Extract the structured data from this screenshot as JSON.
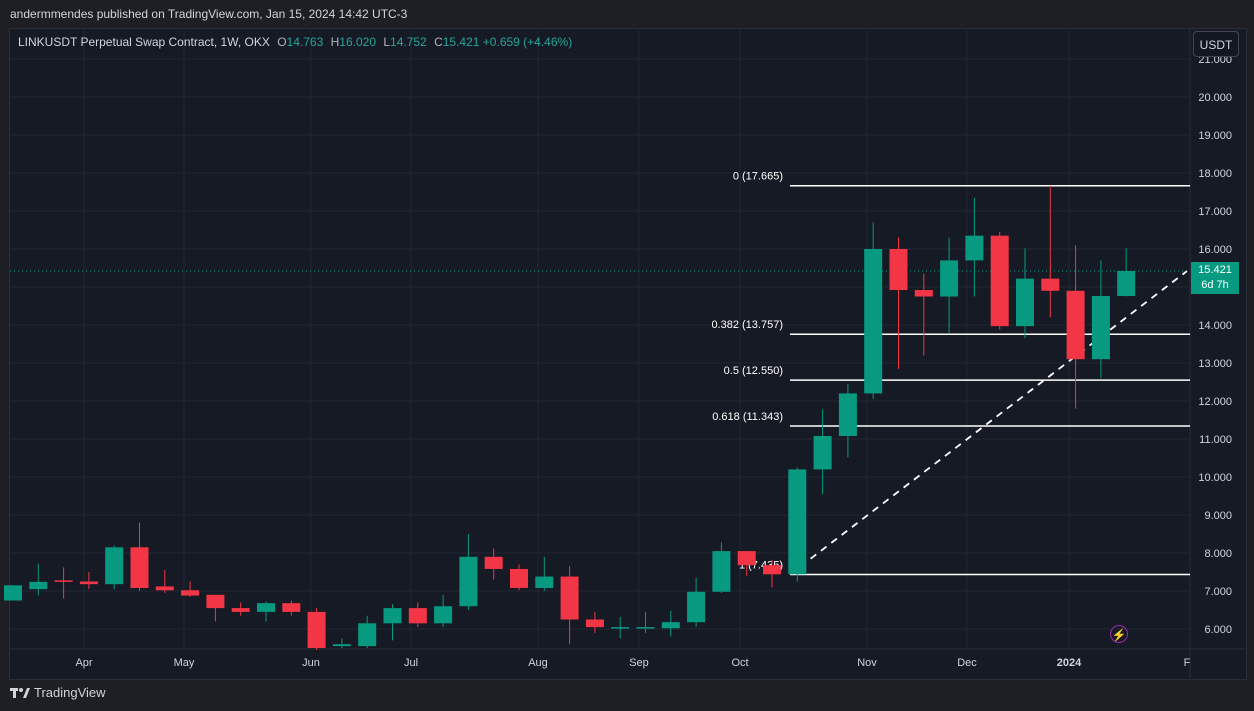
{
  "header": {
    "published": "andermmendes published on TradingView.com, Jan 15, 2024 14:42 UTC-3"
  },
  "legend": {
    "symbol": "LINKUSDT Perpetual Swap Contract, 1W, OKX",
    "o_label": "O",
    "o_value": "14.763",
    "h_label": "H",
    "h_value": "16.020",
    "l_label": "L",
    "l_value": "14.752",
    "c_label": "C",
    "c_value": "15.421",
    "change": "+0.659 (+4.46%)"
  },
  "currency_button": "USDT",
  "last_price": {
    "price": "15.421",
    "countdown": "6d 7h"
  },
  "footer": {
    "brand": "TradingView"
  },
  "colors": {
    "up": "#089981",
    "down": "#f23645",
    "background": "#161a25",
    "grid": "#2a2e39",
    "text": "#d1d4dc"
  },
  "icons": {
    "flash": "lightning-icon",
    "logo": "tradingview-logo-icon"
  },
  "chart_data": {
    "type": "candlestick",
    "ylim": [
      5.4,
      21.0
    ],
    "y_ticks": [
      "21.000",
      "20.000",
      "19.000",
      "18.000",
      "17.000",
      "16.000",
      "15.000",
      "14.000",
      "13.000",
      "12.000",
      "11.000",
      "10.000",
      "9.000",
      "8.000",
      "7.000",
      "6.000"
    ],
    "x_ticks": [
      "Apr",
      "May",
      "Jun",
      "Jul",
      "Aug",
      "Sep",
      "Oct",
      "Nov",
      "Dec",
      "2024",
      "F"
    ],
    "candles": [
      {
        "o": 6.75,
        "h": 7.15,
        "l": 6.75,
        "c": 7.15
      },
      {
        "o": 7.05,
        "h": 7.72,
        "l": 6.88,
        "c": 7.24
      },
      {
        "o": 7.28,
        "h": 7.62,
        "l": 6.8,
        "c": 7.24
      },
      {
        "o": 7.25,
        "h": 7.5,
        "l": 7.05,
        "c": 7.18
      },
      {
        "o": 7.18,
        "h": 8.2,
        "l": 7.05,
        "c": 8.15
      },
      {
        "o": 8.15,
        "h": 8.8,
        "l": 7.0,
        "c": 7.08
      },
      {
        "o": 7.12,
        "h": 7.55,
        "l": 6.95,
        "c": 7.02
      },
      {
        "o": 7.02,
        "h": 7.25,
        "l": 6.85,
        "c": 6.88
      },
      {
        "o": 6.9,
        "h": 6.9,
        "l": 6.2,
        "c": 6.55
      },
      {
        "o": 6.55,
        "h": 6.7,
        "l": 6.35,
        "c": 6.45
      },
      {
        "o": 6.45,
        "h": 6.72,
        "l": 6.2,
        "c": 6.68
      },
      {
        "o": 6.68,
        "h": 6.75,
        "l": 6.35,
        "c": 6.45
      },
      {
        "o": 6.45,
        "h": 6.55,
        "l": 5.45,
        "c": 5.5
      },
      {
        "o": 5.55,
        "h": 5.75,
        "l": 5.5,
        "c": 5.6
      },
      {
        "o": 5.55,
        "h": 6.35,
        "l": 5.5,
        "c": 6.15
      },
      {
        "o": 6.15,
        "h": 6.65,
        "l": 5.7,
        "c": 6.55
      },
      {
        "o": 6.55,
        "h": 6.7,
        "l": 6.05,
        "c": 6.15
      },
      {
        "o": 6.15,
        "h": 6.9,
        "l": 6.05,
        "c": 6.6
      },
      {
        "o": 6.6,
        "h": 8.5,
        "l": 6.5,
        "c": 7.9
      },
      {
        "o": 7.9,
        "h": 8.12,
        "l": 7.3,
        "c": 7.58
      },
      {
        "o": 7.58,
        "h": 7.7,
        "l": 7.02,
        "c": 7.08
      },
      {
        "o": 7.08,
        "h": 7.9,
        "l": 7.0,
        "c": 7.38
      },
      {
        "o": 7.38,
        "h": 7.65,
        "l": 5.6,
        "c": 6.25
      },
      {
        "o": 6.25,
        "h": 6.45,
        "l": 5.9,
        "c": 6.05
      },
      {
        "o": 6.05,
        "h": 6.32,
        "l": 5.75,
        "c": 6.05
      },
      {
        "o": 6.05,
        "h": 6.45,
        "l": 5.9,
        "c": 6.05
      },
      {
        "o": 6.02,
        "h": 6.48,
        "l": 5.8,
        "c": 6.18
      },
      {
        "o": 6.18,
        "h": 7.35,
        "l": 6.05,
        "c": 6.98
      },
      {
        "o": 6.98,
        "h": 8.28,
        "l": 6.95,
        "c": 8.05
      },
      {
        "o": 8.05,
        "h": 8.05,
        "l": 7.4,
        "c": 7.68
      },
      {
        "o": 7.68,
        "h": 7.82,
        "l": 7.1,
        "c": 7.44
      },
      {
        "o": 7.44,
        "h": 10.25,
        "l": 7.25,
        "c": 10.2
      },
      {
        "o": 10.2,
        "h": 11.78,
        "l": 9.55,
        "c": 11.08
      },
      {
        "o": 11.08,
        "h": 12.45,
        "l": 10.52,
        "c": 12.2
      },
      {
        "o": 12.2,
        "h": 16.7,
        "l": 12.05,
        "c": 16.0
      },
      {
        "o": 16.0,
        "h": 16.3,
        "l": 12.85,
        "c": 14.92
      },
      {
        "o": 14.92,
        "h": 15.35,
        "l": 13.2,
        "c": 14.75
      },
      {
        "o": 14.75,
        "h": 16.3,
        "l": 13.8,
        "c": 15.7
      },
      {
        "o": 15.7,
        "h": 17.35,
        "l": 14.75,
        "c": 16.35
      },
      {
        "o": 16.35,
        "h": 16.45,
        "l": 13.88,
        "c": 13.97
      },
      {
        "o": 13.97,
        "h": 16.02,
        "l": 13.65,
        "c": 15.22
      },
      {
        "o": 15.22,
        "h": 17.665,
        "l": 14.2,
        "c": 14.9
      },
      {
        "o": 14.9,
        "h": 16.1,
        "l": 11.8,
        "c": 13.1
      },
      {
        "o": 13.1,
        "h": 15.7,
        "l": 12.6,
        "c": 14.763
      },
      {
        "o": 14.763,
        "h": 16.02,
        "l": 14.752,
        "c": 15.421
      }
    ],
    "fib_levels": [
      {
        "label": "0 (17.665)",
        "value": 17.665
      },
      {
        "label": "0.382 (13.757)",
        "value": 13.757
      },
      {
        "label": "0.5 (12.550)",
        "value": 12.55
      },
      {
        "label": "0.618 (11.343)",
        "value": 11.343
      },
      {
        "label": "1 (7.435)",
        "value": 7.435
      }
    ],
    "last_price": 15.421
  }
}
